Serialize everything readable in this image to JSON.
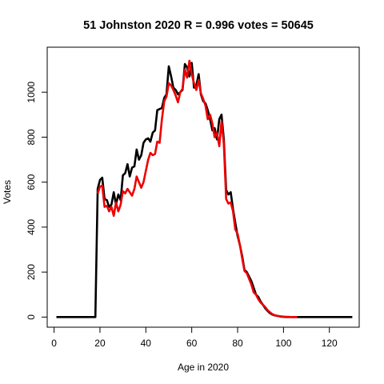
{
  "chart_data": {
    "type": "line",
    "title": "51 Johnston 2020 R = 0.996 votes = 50645",
    "xlabel": "Age in 2020",
    "ylabel": "Votes",
    "xlim": [
      -3,
      133
    ],
    "ylim": [
      -45,
      1200
    ],
    "xticks": [
      0,
      20,
      40,
      60,
      80,
      100,
      120
    ],
    "yticks": [
      0,
      200,
      400,
      600,
      800,
      1000
    ],
    "grid": false,
    "legend": "none",
    "series": [
      {
        "color": "#000000",
        "points": [
          [
            1,
            0
          ],
          [
            18,
            0
          ],
          [
            19,
            570
          ],
          [
            20,
            610
          ],
          [
            21,
            620
          ],
          [
            22,
            525
          ],
          [
            23,
            520
          ],
          [
            24,
            490
          ],
          [
            25,
            500
          ],
          [
            26,
            555
          ],
          [
            27,
            500
          ],
          [
            28,
            545
          ],
          [
            29,
            520
          ],
          [
            30,
            630
          ],
          [
            31,
            640
          ],
          [
            32,
            680
          ],
          [
            33,
            625
          ],
          [
            34,
            665
          ],
          [
            35,
            670
          ],
          [
            36,
            745
          ],
          [
            37,
            700
          ],
          [
            38,
            720
          ],
          [
            39,
            775
          ],
          [
            40,
            790
          ],
          [
            41,
            795
          ],
          [
            42,
            780
          ],
          [
            43,
            820
          ],
          [
            44,
            830
          ],
          [
            45,
            920
          ],
          [
            46,
            925
          ],
          [
            47,
            930
          ],
          [
            48,
            975
          ],
          [
            49,
            990
          ],
          [
            50,
            1115
          ],
          [
            51,
            1070
          ],
          [
            52,
            1020
          ],
          [
            53,
            1010
          ],
          [
            54,
            990
          ],
          [
            55,
            1000
          ],
          [
            56,
            1010
          ],
          [
            57,
            1125
          ],
          [
            58,
            1110
          ],
          [
            59,
            1070
          ],
          [
            60,
            1130
          ],
          [
            61,
            1020
          ],
          [
            62,
            1030
          ],
          [
            63,
            1080
          ],
          [
            64,
            990
          ],
          [
            65,
            960
          ],
          [
            66,
            950
          ],
          [
            67,
            920
          ],
          [
            68,
            880
          ],
          [
            69,
            830
          ],
          [
            70,
            840
          ],
          [
            71,
            790
          ],
          [
            72,
            880
          ],
          [
            73,
            900
          ],
          [
            74,
            790
          ],
          [
            75,
            565
          ],
          [
            76,
            545
          ],
          [
            77,
            555
          ],
          [
            78,
            480
          ],
          [
            79,
            420
          ],
          [
            80,
            360
          ],
          [
            81,
            320
          ],
          [
            82,
            270
          ],
          [
            83,
            210
          ],
          [
            84,
            200
          ],
          [
            85,
            180
          ],
          [
            86,
            160
          ],
          [
            87,
            130
          ],
          [
            88,
            100
          ],
          [
            89,
            90
          ],
          [
            90,
            70
          ],
          [
            91,
            55
          ],
          [
            92,
            40
          ],
          [
            93,
            28
          ],
          [
            94,
            18
          ],
          [
            95,
            12
          ],
          [
            96,
            8
          ],
          [
            97,
            6
          ],
          [
            98,
            4
          ],
          [
            99,
            2
          ],
          [
            100,
            1
          ],
          [
            101,
            0
          ],
          [
            130,
            0
          ]
        ]
      },
      {
        "color": "#ee0000",
        "points": [
          [
            19,
            550
          ],
          [
            20,
            580
          ],
          [
            21,
            585
          ],
          [
            22,
            490
          ],
          [
            23,
            495
          ],
          [
            24,
            470
          ],
          [
            25,
            490
          ],
          [
            26,
            450
          ],
          [
            27,
            510
          ],
          [
            28,
            470
          ],
          [
            29,
            500
          ],
          [
            30,
            560
          ],
          [
            31,
            550
          ],
          [
            32,
            570
          ],
          [
            33,
            555
          ],
          [
            34,
            540
          ],
          [
            35,
            570
          ],
          [
            36,
            625
          ],
          [
            37,
            600
          ],
          [
            38,
            575
          ],
          [
            39,
            600
          ],
          [
            40,
            650
          ],
          [
            41,
            700
          ],
          [
            42,
            730
          ],
          [
            43,
            720
          ],
          [
            44,
            725
          ],
          [
            45,
            780
          ],
          [
            46,
            775
          ],
          [
            47,
            880
          ],
          [
            48,
            960
          ],
          [
            49,
            980
          ],
          [
            50,
            1040
          ],
          [
            51,
            1030
          ],
          [
            52,
            1010
          ],
          [
            53,
            985
          ],
          [
            54,
            955
          ],
          [
            55,
            1000
          ],
          [
            56,
            1015
          ],
          [
            57,
            1100
          ],
          [
            58,
            1065
          ],
          [
            59,
            1140
          ],
          [
            60,
            1080
          ],
          [
            61,
            1040
          ],
          [
            62,
            1010
          ],
          [
            63,
            1055
          ],
          [
            64,
            995
          ],
          [
            65,
            970
          ],
          [
            66,
            940
          ],
          [
            67,
            880
          ],
          [
            68,
            900
          ],
          [
            69,
            860
          ],
          [
            70,
            800
          ],
          [
            71,
            820
          ],
          [
            72,
            760
          ],
          [
            73,
            870
          ],
          [
            74,
            770
          ],
          [
            75,
            525
          ],
          [
            76,
            505
          ],
          [
            77,
            510
          ],
          [
            78,
            470
          ],
          [
            79,
            390
          ],
          [
            80,
            370
          ],
          [
            81,
            320
          ],
          [
            82,
            260
          ],
          [
            83,
            205
          ],
          [
            84,
            195
          ],
          [
            85,
            170
          ],
          [
            86,
            145
          ],
          [
            87,
            110
          ],
          [
            88,
            100
          ],
          [
            89,
            80
          ],
          [
            90,
            65
          ],
          [
            91,
            55
          ],
          [
            92,
            45
          ],
          [
            93,
            32
          ],
          [
            94,
            22
          ],
          [
            95,
            14
          ],
          [
            96,
            9
          ],
          [
            97,
            6
          ],
          [
            98,
            4
          ],
          [
            99,
            3
          ],
          [
            100,
            2
          ],
          [
            101,
            1
          ],
          [
            102,
            1
          ],
          [
            103,
            0
          ],
          [
            106,
            0
          ]
        ]
      }
    ]
  }
}
